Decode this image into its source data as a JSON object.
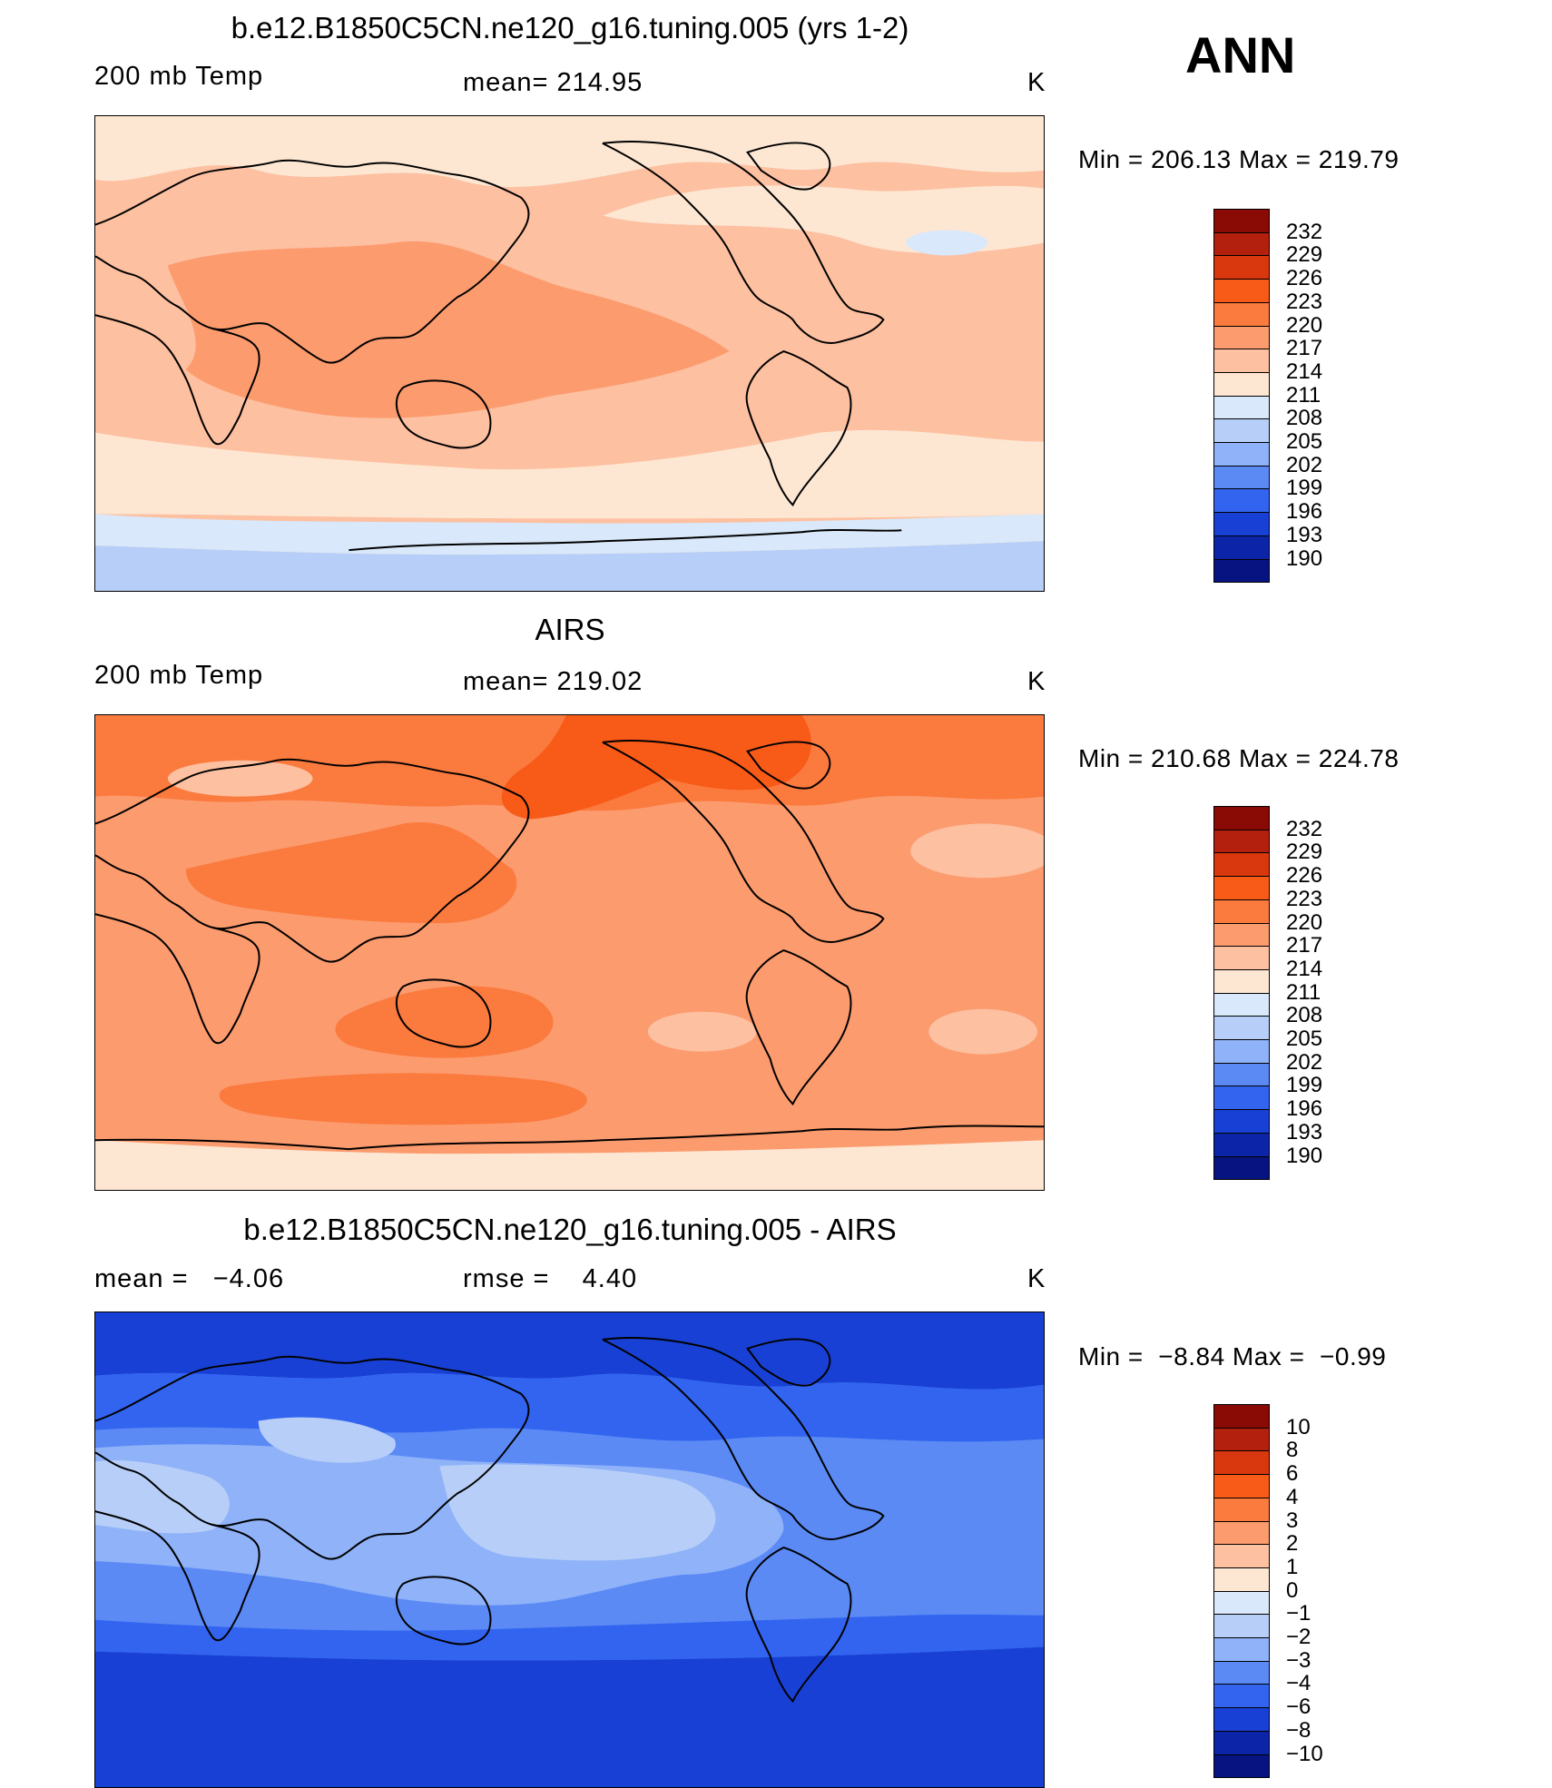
{
  "header": {
    "season": "ANN"
  },
  "panels": [
    {
      "title": "b.e12.B1850C5CN.ne120_g16.tuning.005 (yrs 1-2)",
      "left_label": "200 mb Temp",
      "center_label": "mean= 214.95",
      "units": "K",
      "minmax": "Min = 206.13 Max = 219.79",
      "colorbar": {
        "ticks": [
          "232",
          "229",
          "226",
          "223",
          "220",
          "217",
          "214",
          "211",
          "208",
          "205",
          "202",
          "199",
          "196",
          "193",
          "190"
        ],
        "colors": [
          "#8a0a06",
          "#b3200d",
          "#d9380e",
          "#f85a18",
          "#fb7a3e",
          "#fc9b6e",
          "#fdc0a1",
          "#fde7d3",
          "#d9e8fa",
          "#b7cff8",
          "#8fb2f8",
          "#5b8af5",
          "#3264ef",
          "#1840d4",
          "#0c25a8",
          "#061380"
        ]
      },
      "map_palette": {
        "polar": "#b7cff8",
        "subpolar": "#d9e8fa",
        "midlat": "#fde7d3",
        "base": "#fdc0a1",
        "warm": "#fc9b6e"
      }
    },
    {
      "title": "AIRS",
      "left_label": "200 mb Temp",
      "center_label": "mean= 219.02",
      "units": "K",
      "minmax": "Min = 210.68 Max = 224.78",
      "colorbar": {
        "ticks": [
          "232",
          "229",
          "226",
          "223",
          "220",
          "217",
          "214",
          "211",
          "208",
          "205",
          "202",
          "199",
          "196",
          "193",
          "190"
        ],
        "colors": [
          "#8a0a06",
          "#b3200d",
          "#d9380e",
          "#f85a18",
          "#fb7a3e",
          "#fc9b6e",
          "#fdc0a1",
          "#fde7d3",
          "#d9e8fa",
          "#b7cff8",
          "#8fb2f8",
          "#5b8af5",
          "#3264ef",
          "#1840d4",
          "#0c25a8",
          "#061380"
        ]
      },
      "map_palette": {
        "polar": "#fde7d3",
        "base": "#fc9b6e",
        "warm": "#fb7a3e",
        "hot": "#f85a18",
        "cool": "#fdc0a1"
      }
    },
    {
      "title": "b.e12.B1850C5CN.ne120_g16.tuning.005 - AIRS",
      "left_label": "mean =   −4.06",
      "center_label": "rmse =    4.40",
      "units": "K",
      "minmax": "Min =  −8.84 Max =  −0.99",
      "colorbar": {
        "ticks": [
          "10",
          "8",
          "6",
          "4",
          "3",
          "2",
          "1",
          "0",
          "−1",
          "−2",
          "−3",
          "−4",
          "−6",
          "−8",
          "−10"
        ],
        "colors": [
          "#8a0a06",
          "#b3200d",
          "#d9380e",
          "#f85a18",
          "#fb7a3e",
          "#fc9b6e",
          "#fdc0a1",
          "#fde7d3",
          "#d9e8fa",
          "#b7cff8",
          "#8fb2f8",
          "#5b8af5",
          "#3264ef",
          "#1840d4",
          "#0c25a8",
          "#061380"
        ]
      },
      "map_palette": {
        "polar": "#1840d4",
        "midlat": "#3264ef",
        "base": "#5b8af5",
        "tropic": "#8fb2f8",
        "light": "#b7cff8"
      }
    }
  ]
}
